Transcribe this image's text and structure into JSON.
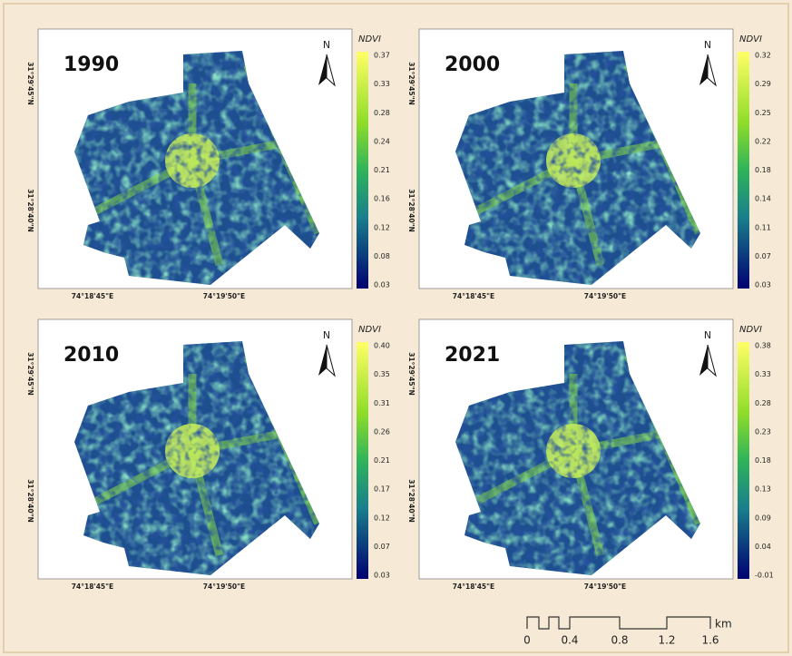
{
  "panels": [
    {
      "year": "1990",
      "legend_title": "NDVI",
      "north": "N",
      "legend_ticks": [
        "0.37",
        "0.33",
        "0.28",
        "0.24",
        "0.21",
        "0.16",
        "0.12",
        "0.08",
        "0.03"
      ],
      "x_labels": [
        "74°18'45\"E",
        "74°19'50\"E"
      ],
      "y_labels": [
        "31°29'45\"N",
        "31°28'40\"N"
      ]
    },
    {
      "year": "2000",
      "legend_title": "NDVI",
      "north": "N",
      "legend_ticks": [
        "0.32",
        "0.29",
        "0.25",
        "0.22",
        "0.18",
        "0.14",
        "0.11",
        "0.07",
        "0.03"
      ],
      "x_labels": [
        "74°18'45\"E",
        "74°19'50\"E"
      ],
      "y_labels": [
        "31°29'45\"N",
        "31°28'40\"N"
      ]
    },
    {
      "year": "2010",
      "legend_title": "NDVI",
      "north": "N",
      "legend_ticks": [
        "0.40",
        "0.35",
        "0.31",
        "0.26",
        "0.21",
        "0.17",
        "0.12",
        "0.07",
        "0.03"
      ],
      "x_labels": [
        "74°18'45\"E",
        "74°19'50\"E"
      ],
      "y_labels": [
        "31°29'45\"N",
        "31°28'40\"N"
      ]
    },
    {
      "year": "2021",
      "legend_title": "NDVI",
      "north": "N",
      "legend_ticks": [
        "0.38",
        "0.33",
        "0.28",
        "0.23",
        "0.18",
        "0.13",
        "0.09",
        "0.04",
        "-0.01"
      ],
      "x_labels": [
        "74°18'45\"E",
        "74°19'50\"E"
      ],
      "y_labels": [
        "31°29'45\"N",
        "31°28'40\"N"
      ]
    }
  ],
  "scale_bar": {
    "labels": [
      "0",
      "0.4",
      "0.8",
      "1.2",
      "1.6"
    ],
    "unit": "km"
  }
}
